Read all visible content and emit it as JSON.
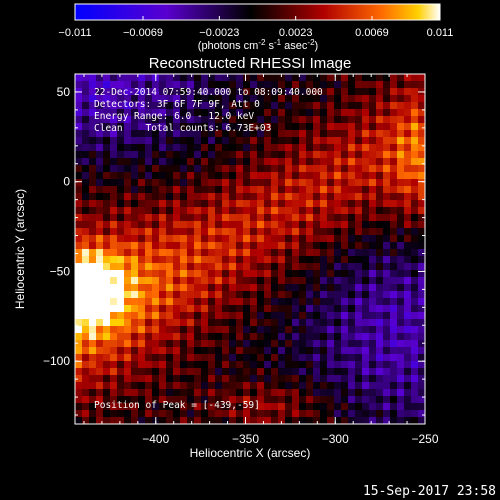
{
  "chart_data": {
    "type": "heatmap",
    "title": "Reconstructed RHESSI Image",
    "colorbar": {
      "ticks": [
        "-0.011",
        "-0.0069",
        "-0.0023",
        "0.0023",
        "0.0069",
        "0.011"
      ],
      "range": [
        -0.011,
        0.011
      ],
      "units_main": "(photons cm",
      "units_sup1": "-2",
      "units_mid1": " s",
      "units_sup2": "-1",
      "units_mid2": " asec",
      "units_sup3": "-2",
      "units_end": ")"
    },
    "xlabel": "Heliocentric X (arcsec)",
    "ylabel": "Heliocentric Y (arcsec)",
    "xlim": [
      -445,
      -250
    ],
    "ylim": [
      -135,
      60
    ],
    "xticks": [
      -400,
      -350,
      -300,
      -250
    ],
    "xtick_labels": [
      "−400",
      "−350",
      "−300",
      "−250"
    ],
    "yticks": [
      50,
      0,
      -50,
      -100
    ],
    "ytick_labels": [
      "50",
      "0",
      "−50",
      "−100"
    ],
    "annotations": {
      "time": "22-Dec-2014 07:59:40.000 to 08:09:40.000",
      "detectors": "Detectors: 3F 6F 7F 9F, Att 0",
      "energy": "Energy Range: 6.0 - 12.0 keV",
      "clean": "Clean    Total counts: 6.73E+03",
      "peak": "Position of Peak = [-439,-59]"
    },
    "peak": [
      -439,
      -59
    ],
    "footer_date": "15-Sep-2017 23:58"
  }
}
